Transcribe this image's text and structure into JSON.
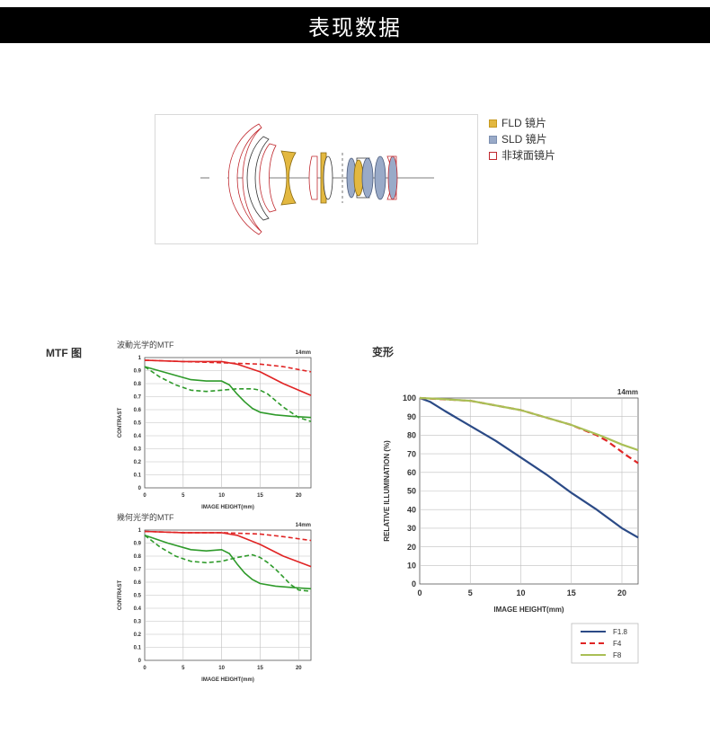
{
  "banner": {
    "title": "表现数据"
  },
  "lens_legend": {
    "items": [
      {
        "label": "FLD 镜片",
        "color": "#e3b840",
        "border": "#c79a20"
      },
      {
        "label": "SLD 镜片",
        "color": "#99aac8",
        "border": "#7c8fb0"
      },
      {
        "label": "非球面镜片",
        "color": "#ffffff",
        "border": "#c0282e"
      }
    ]
  },
  "sections": {
    "mtf": "MTF 图",
    "distortion": "变形"
  },
  "colors": {
    "red": "#e02424",
    "green": "#2e9a2a",
    "blue": "#2b4a86",
    "olive": "#a9bf55",
    "grid": "#bfbfbf"
  },
  "chart_data": [
    {
      "type": "line",
      "title": "波動光学的MTF",
      "focal": "14mm",
      "xlabel": "IMAGE HEIGHT(mm)",
      "ylabel": "CONTRAST",
      "xlim": [
        0,
        21.6
      ],
      "ylim": [
        0,
        1
      ],
      "xticks": [
        "0",
        "5",
        "10",
        "15",
        "20"
      ],
      "yticks": [
        "0",
        "0.1",
        "0.2",
        "0.3",
        "0.4",
        "0.5",
        "0.6",
        "0.7",
        "0.8",
        "0.9",
        "1"
      ],
      "series": [
        {
          "color": "red",
          "dash": false,
          "x": [
            0,
            5,
            10,
            12,
            15,
            18,
            21.6
          ],
          "y": [
            0.98,
            0.97,
            0.97,
            0.95,
            0.89,
            0.8,
            0.71
          ]
        },
        {
          "color": "red",
          "dash": true,
          "x": [
            0,
            5,
            10,
            15,
            18,
            21.6
          ],
          "y": [
            0.98,
            0.97,
            0.96,
            0.95,
            0.93,
            0.89
          ]
        },
        {
          "color": "green",
          "dash": false,
          "x": [
            0,
            3,
            6,
            8,
            10,
            11,
            12,
            13,
            14,
            15,
            17,
            19,
            21.6
          ],
          "y": [
            0.93,
            0.88,
            0.83,
            0.82,
            0.82,
            0.79,
            0.72,
            0.66,
            0.61,
            0.58,
            0.56,
            0.55,
            0.54
          ]
        },
        {
          "color": "green",
          "dash": true,
          "x": [
            0,
            2,
            4,
            6,
            8,
            10,
            12,
            14,
            15,
            16,
            17,
            18,
            19,
            20,
            21.6
          ],
          "y": [
            0.93,
            0.85,
            0.79,
            0.75,
            0.74,
            0.75,
            0.76,
            0.76,
            0.75,
            0.72,
            0.67,
            0.62,
            0.58,
            0.54,
            0.51
          ]
        }
      ]
    },
    {
      "type": "line",
      "title": "幾何光学的MTF",
      "focal": "14mm",
      "xlabel": "IMAGE HEIGHT(mm)",
      "ylabel": "CONTRAST",
      "xlim": [
        0,
        21.6
      ],
      "ylim": [
        0,
        1
      ],
      "xticks": [
        "0",
        "5",
        "10",
        "15",
        "20"
      ],
      "yticks": [
        "0",
        "0.1",
        "0.2",
        "0.3",
        "0.4",
        "0.5",
        "0.6",
        "0.7",
        "0.8",
        "0.9",
        "1"
      ],
      "series": [
        {
          "color": "red",
          "dash": false,
          "x": [
            0,
            5,
            10,
            12,
            15,
            18,
            21.6
          ],
          "y": [
            0.99,
            0.98,
            0.98,
            0.96,
            0.89,
            0.8,
            0.72
          ]
        },
        {
          "color": "red",
          "dash": true,
          "x": [
            0,
            5,
            10,
            15,
            18,
            21.6
          ],
          "y": [
            0.99,
            0.98,
            0.98,
            0.97,
            0.95,
            0.92
          ]
        },
        {
          "color": "green",
          "dash": false,
          "x": [
            0,
            3,
            6,
            8,
            10,
            11,
            12,
            13,
            14,
            15,
            17,
            19,
            21.6
          ],
          "y": [
            0.96,
            0.9,
            0.85,
            0.84,
            0.85,
            0.82,
            0.74,
            0.67,
            0.62,
            0.59,
            0.57,
            0.56,
            0.55
          ]
        },
        {
          "color": "green",
          "dash": true,
          "x": [
            0,
            2,
            4,
            6,
            8,
            10,
            12,
            14,
            15,
            16,
            17,
            18,
            19,
            20,
            21.6
          ],
          "y": [
            0.96,
            0.87,
            0.8,
            0.76,
            0.75,
            0.76,
            0.79,
            0.81,
            0.79,
            0.75,
            0.7,
            0.64,
            0.58,
            0.54,
            0.53
          ]
        }
      ]
    },
    {
      "type": "line",
      "title": "",
      "focal": "14mm",
      "xlabel": "IMAGE HEIGHT(mm)",
      "ylabel": "RELATIVE ILLUMINATION (%)",
      "xlim": [
        0,
        21.6
      ],
      "ylim": [
        0,
        100
      ],
      "xticks": [
        "0",
        "5",
        "10",
        "15",
        "20"
      ],
      "yticks": [
        "0",
        "10",
        "20",
        "30",
        "40",
        "50",
        "60",
        "70",
        "80",
        "90",
        "100"
      ],
      "legend": {
        "position": "bottom-right"
      },
      "series": [
        {
          "name": "F1.8",
          "color": "blue",
          "dash": false,
          "x": [
            0,
            1,
            2.5,
            5,
            7.5,
            10,
            12.5,
            15,
            17.5,
            20,
            21.6
          ],
          "y": [
            100,
            98,
            93,
            85,
            77,
            68,
            59,
            49,
            40,
            30,
            25
          ]
        },
        {
          "name": "F4",
          "color": "red",
          "dash": true,
          "x": [
            0,
            5,
            10,
            15,
            17.5,
            18.5,
            19.5,
            20.5,
            21.6
          ],
          "y": [
            100,
            98.5,
            93.5,
            85.5,
            80,
            77,
            73,
            69,
            65
          ]
        },
        {
          "name": "F8",
          "color": "olive",
          "dash": false,
          "x": [
            0,
            2,
            5,
            10,
            15,
            18,
            20,
            21.6
          ],
          "y": [
            100,
            99.5,
            98.5,
            93.5,
            85.5,
            79.5,
            75,
            72
          ]
        }
      ]
    }
  ]
}
